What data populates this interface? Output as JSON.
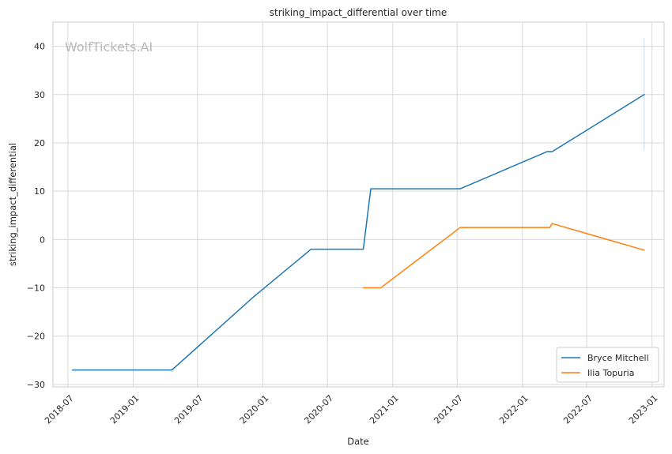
{
  "chart_data": {
    "type": "line",
    "title": "striking_impact_differential over time",
    "xlabel": "Date",
    "ylabel": "striking_impact_differential",
    "watermark": "WolfTickets.AI",
    "x_ticks": [
      "2018-07",
      "2019-01",
      "2019-07",
      "2020-01",
      "2020-07",
      "2021-01",
      "2021-07",
      "2022-01",
      "2022-07",
      "2023-01"
    ],
    "y_ticks": [
      -30,
      -20,
      -10,
      0,
      10,
      20,
      30,
      40
    ],
    "xlim": [
      "2018-05-20",
      "2023-02-04"
    ],
    "ylim": [
      -30.5,
      45
    ],
    "grid": true,
    "legend_position": "lower right",
    "series": [
      {
        "name": "Bryce Mitchell",
        "color": "#1f77b4",
        "points": [
          [
            "2018-07-14",
            -27
          ],
          [
            "2019-04-20",
            -27
          ],
          [
            "2019-12-07",
            -11.8
          ],
          [
            "2020-05-16",
            -2
          ],
          [
            "2020-10-10",
            -2
          ],
          [
            "2020-10-31",
            10.5
          ],
          [
            "2021-07-10",
            10.5
          ],
          [
            "2022-03-12",
            18.2
          ],
          [
            "2022-03-26",
            18.2
          ],
          [
            "2022-12-10",
            30
          ]
        ]
      },
      {
        "name": "Ilia Topuria",
        "color": "#ff7f0e",
        "points": [
          [
            "2020-10-10",
            -10
          ],
          [
            "2020-11-28",
            -10
          ],
          [
            "2021-07-10",
            2.5
          ],
          [
            "2022-03-19",
            2.5
          ],
          [
            "2022-03-26",
            3.3
          ],
          [
            "2022-12-10",
            -2.2
          ]
        ]
      }
    ],
    "error_bar": {
      "x": "2022-12-10",
      "low": 18.3,
      "high": 41.7,
      "color": "#1f77b4"
    }
  }
}
